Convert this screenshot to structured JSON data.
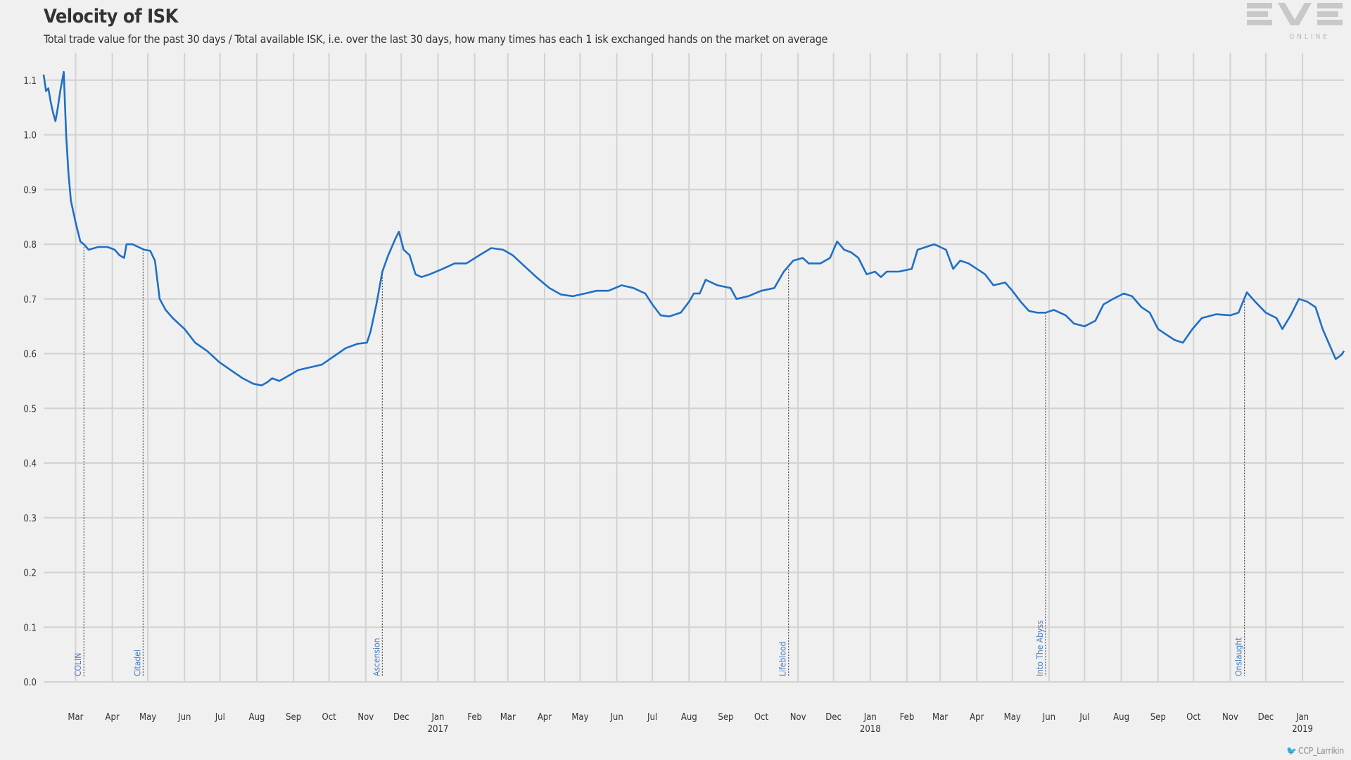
{
  "header": {
    "title": "Velocity of ISK",
    "subtitle": "Total trade value for the past 30 days / Total available ISK, i.e. over the last 30 days, how many times has each 1 isk exchanged hands on the market on average"
  },
  "logo": {
    "main": "EVE",
    "sub": "ONLINE"
  },
  "credit": "CCP_Larrikin",
  "colors": {
    "line": "#1f6fc5",
    "grid": "#d2d2d2",
    "background": "#f0f0f0",
    "event_line": "#555555",
    "event_label": "#4a7fc0"
  },
  "chart_data": {
    "type": "line",
    "title": "Velocity of ISK",
    "xlabel": "",
    "ylabel": "",
    "ylim": [
      0,
      1.15
    ],
    "y_ticks": [
      "0.0",
      "0.1",
      "0.2",
      "0.3",
      "0.4",
      "0.5",
      "0.6",
      "0.7",
      "0.8",
      "0.9",
      "1.0",
      "1.1"
    ],
    "x_ticks": [
      {
        "label": "Mar",
        "year": "",
        "date": "2016-03-01"
      },
      {
        "label": "Apr",
        "year": "",
        "date": "2016-04-01"
      },
      {
        "label": "May",
        "year": "",
        "date": "2016-05-01"
      },
      {
        "label": "Jun",
        "year": "",
        "date": "2016-06-01"
      },
      {
        "label": "Jul",
        "year": "",
        "date": "2016-07-01"
      },
      {
        "label": "Aug",
        "year": "",
        "date": "2016-08-01"
      },
      {
        "label": "Sep",
        "year": "",
        "date": "2016-09-01"
      },
      {
        "label": "Oct",
        "year": "",
        "date": "2016-10-01"
      },
      {
        "label": "Nov",
        "year": "",
        "date": "2016-11-01"
      },
      {
        "label": "Dec",
        "year": "",
        "date": "2016-12-01"
      },
      {
        "label": "Jan",
        "year": "2017",
        "date": "2017-01-01"
      },
      {
        "label": "Feb",
        "year": "",
        "date": "2017-02-01"
      },
      {
        "label": "Mar",
        "year": "",
        "date": "2017-03-01"
      },
      {
        "label": "Apr",
        "year": "",
        "date": "2017-04-01"
      },
      {
        "label": "May",
        "year": "",
        "date": "2017-05-01"
      },
      {
        "label": "Jun",
        "year": "",
        "date": "2017-06-01"
      },
      {
        "label": "Jul",
        "year": "",
        "date": "2017-07-01"
      },
      {
        "label": "Aug",
        "year": "",
        "date": "2017-08-01"
      },
      {
        "label": "Sep",
        "year": "",
        "date": "2017-09-01"
      },
      {
        "label": "Oct",
        "year": "",
        "date": "2017-10-01"
      },
      {
        "label": "Nov",
        "year": "",
        "date": "2017-11-01"
      },
      {
        "label": "Dec",
        "year": "",
        "date": "2017-12-01"
      },
      {
        "label": "Jan",
        "year": "2018",
        "date": "2018-01-01"
      },
      {
        "label": "Feb",
        "year": "",
        "date": "2018-02-01"
      },
      {
        "label": "Mar",
        "year": "",
        "date": "2018-03-01"
      },
      {
        "label": "Apr",
        "year": "",
        "date": "2018-04-01"
      },
      {
        "label": "May",
        "year": "",
        "date": "2018-05-01"
      },
      {
        "label": "Jun",
        "year": "",
        "date": "2018-06-01"
      },
      {
        "label": "Jul",
        "year": "",
        "date": "2018-07-01"
      },
      {
        "label": "Aug",
        "year": "",
        "date": "2018-08-01"
      },
      {
        "label": "Sep",
        "year": "",
        "date": "2018-09-01"
      },
      {
        "label": "Oct",
        "year": "",
        "date": "2018-10-01"
      },
      {
        "label": "Nov",
        "year": "",
        "date": "2018-11-01"
      },
      {
        "label": "Dec",
        "year": "",
        "date": "2018-12-01"
      },
      {
        "label": "Jan",
        "year": "2019",
        "date": "2019-01-01"
      }
    ],
    "x_range": [
      "2016-02-03",
      "2019-02-05"
    ],
    "events": [
      {
        "label": "COLIN",
        "date": "2016-03-08"
      },
      {
        "label": "Citadel",
        "date": "2016-04-27"
      },
      {
        "label": "Ascension",
        "date": "2016-11-15"
      },
      {
        "label": "Lifeblood",
        "date": "2017-10-24"
      },
      {
        "label": "Into The Abyss",
        "date": "2018-05-29"
      },
      {
        "label": "Onslaught",
        "date": "2018-11-13"
      }
    ],
    "series": [
      {
        "name": "",
        "values": [
          [
            "2016-02-03",
            1.11
          ],
          [
            "2016-02-05",
            1.08
          ],
          [
            "2016-02-07",
            1.085
          ],
          [
            "2016-02-09",
            1.06
          ],
          [
            "2016-02-11",
            1.04
          ],
          [
            "2016-02-13",
            1.025
          ],
          [
            "2016-02-15",
            1.05
          ],
          [
            "2016-02-17",
            1.08
          ],
          [
            "2016-02-20",
            1.115
          ],
          [
            "2016-02-22",
            1.0
          ],
          [
            "2016-02-24",
            0.93
          ],
          [
            "2016-02-26",
            0.88
          ],
          [
            "2016-03-01",
            0.84
          ],
          [
            "2016-03-05",
            0.805
          ],
          [
            "2016-03-08",
            0.8
          ],
          [
            "2016-03-12",
            0.79
          ],
          [
            "2016-03-20",
            0.795
          ],
          [
            "2016-03-28",
            0.795
          ],
          [
            "2016-04-03",
            0.79
          ],
          [
            "2016-04-07",
            0.78
          ],
          [
            "2016-04-11",
            0.775
          ],
          [
            "2016-04-13",
            0.8
          ],
          [
            "2016-04-18",
            0.8
          ],
          [
            "2016-04-23",
            0.795
          ],
          [
            "2016-04-28",
            0.79
          ],
          [
            "2016-05-03",
            0.788
          ],
          [
            "2016-05-07",
            0.77
          ],
          [
            "2016-05-11",
            0.7
          ],
          [
            "2016-05-16",
            0.68
          ],
          [
            "2016-05-22",
            0.665
          ],
          [
            "2016-06-01",
            0.645
          ],
          [
            "2016-06-10",
            0.62
          ],
          [
            "2016-06-20",
            0.605
          ],
          [
            "2016-06-30",
            0.585
          ],
          [
            "2016-07-10",
            0.57
          ],
          [
            "2016-07-20",
            0.555
          ],
          [
            "2016-07-29",
            0.545
          ],
          [
            "2016-08-05",
            0.542
          ],
          [
            "2016-08-10",
            0.548
          ],
          [
            "2016-08-14",
            0.555
          ],
          [
            "2016-08-20",
            0.55
          ],
          [
            "2016-08-28",
            0.56
          ],
          [
            "2016-09-05",
            0.57
          ],
          [
            "2016-09-15",
            0.575
          ],
          [
            "2016-09-25",
            0.58
          ],
          [
            "2016-10-05",
            0.595
          ],
          [
            "2016-10-15",
            0.61
          ],
          [
            "2016-10-25",
            0.618
          ],
          [
            "2016-11-02",
            0.62
          ],
          [
            "2016-11-05",
            0.64
          ],
          [
            "2016-11-10",
            0.69
          ],
          [
            "2016-11-15",
            0.75
          ],
          [
            "2016-11-20",
            0.78
          ],
          [
            "2016-11-26",
            0.81
          ],
          [
            "2016-11-29",
            0.823
          ],
          [
            "2016-12-03",
            0.79
          ],
          [
            "2016-12-08",
            0.78
          ],
          [
            "2016-12-13",
            0.745
          ],
          [
            "2016-12-18",
            0.74
          ],
          [
            "2016-12-25",
            0.745
          ],
          [
            "2017-01-05",
            0.755
          ],
          [
            "2017-01-15",
            0.765
          ],
          [
            "2017-01-25",
            0.765
          ],
          [
            "2017-02-05",
            0.78
          ],
          [
            "2017-02-15",
            0.793
          ],
          [
            "2017-02-25",
            0.79
          ],
          [
            "2017-03-05",
            0.78
          ],
          [
            "2017-03-15",
            0.76
          ],
          [
            "2017-03-25",
            0.74
          ],
          [
            "2017-04-05",
            0.72
          ],
          [
            "2017-04-15",
            0.708
          ],
          [
            "2017-04-25",
            0.705
          ],
          [
            "2017-05-05",
            0.71
          ],
          [
            "2017-05-15",
            0.715
          ],
          [
            "2017-05-25",
            0.715
          ],
          [
            "2017-06-05",
            0.725
          ],
          [
            "2017-06-15",
            0.72
          ],
          [
            "2017-06-25",
            0.71
          ],
          [
            "2017-07-01",
            0.69
          ],
          [
            "2017-07-08",
            0.67
          ],
          [
            "2017-07-15",
            0.668
          ],
          [
            "2017-07-25",
            0.675
          ],
          [
            "2017-08-01",
            0.695
          ],
          [
            "2017-08-05",
            0.71
          ],
          [
            "2017-08-10",
            0.71
          ],
          [
            "2017-08-15",
            0.735
          ],
          [
            "2017-08-25",
            0.725
          ],
          [
            "2017-09-05",
            0.72
          ],
          [
            "2017-09-10",
            0.7
          ],
          [
            "2017-09-20",
            0.705
          ],
          [
            "2017-10-01",
            0.715
          ],
          [
            "2017-10-12",
            0.72
          ],
          [
            "2017-10-20",
            0.75
          ],
          [
            "2017-10-28",
            0.77
          ],
          [
            "2017-11-05",
            0.775
          ],
          [
            "2017-11-10",
            0.765
          ],
          [
            "2017-11-20",
            0.765
          ],
          [
            "2017-11-28",
            0.775
          ],
          [
            "2017-12-04",
            0.805
          ],
          [
            "2017-12-10",
            0.79
          ],
          [
            "2017-12-16",
            0.785
          ],
          [
            "2017-12-22",
            0.775
          ],
          [
            "2017-12-29",
            0.745
          ],
          [
            "2018-01-05",
            0.75
          ],
          [
            "2018-01-10",
            0.74
          ],
          [
            "2018-01-15",
            0.75
          ],
          [
            "2018-01-25",
            0.75
          ],
          [
            "2018-02-05",
            0.755
          ],
          [
            "2018-02-10",
            0.79
          ],
          [
            "2018-02-17",
            0.795
          ],
          [
            "2018-02-24",
            0.8
          ],
          [
            "2018-03-01",
            0.795
          ],
          [
            "2018-03-06",
            0.79
          ],
          [
            "2018-03-12",
            0.755
          ],
          [
            "2018-03-18",
            0.77
          ],
          [
            "2018-03-25",
            0.765
          ],
          [
            "2018-04-01",
            0.755
          ],
          [
            "2018-04-08",
            0.745
          ],
          [
            "2018-04-15",
            0.725
          ],
          [
            "2018-04-25",
            0.73
          ],
          [
            "2018-05-01",
            0.715
          ],
          [
            "2018-05-08",
            0.695
          ],
          [
            "2018-05-15",
            0.678
          ],
          [
            "2018-05-22",
            0.675
          ],
          [
            "2018-05-29",
            0.675
          ],
          [
            "2018-06-05",
            0.68
          ],
          [
            "2018-06-15",
            0.67
          ],
          [
            "2018-06-22",
            0.655
          ],
          [
            "2018-07-01",
            0.65
          ],
          [
            "2018-07-10",
            0.66
          ],
          [
            "2018-07-17",
            0.69
          ],
          [
            "2018-07-25",
            0.7
          ],
          [
            "2018-08-03",
            0.71
          ],
          [
            "2018-08-10",
            0.705
          ],
          [
            "2018-08-18",
            0.685
          ],
          [
            "2018-08-25",
            0.675
          ],
          [
            "2018-09-01",
            0.645
          ],
          [
            "2018-09-08",
            0.635
          ],
          [
            "2018-09-15",
            0.625
          ],
          [
            "2018-09-22",
            0.62
          ],
          [
            "2018-09-30",
            0.645
          ],
          [
            "2018-10-08",
            0.665
          ],
          [
            "2018-10-20",
            0.672
          ],
          [
            "2018-11-01",
            0.67
          ],
          [
            "2018-11-08",
            0.675
          ],
          [
            "2018-11-15",
            0.712
          ],
          [
            "2018-11-22",
            0.695
          ],
          [
            "2018-12-01",
            0.675
          ],
          [
            "2018-12-10",
            0.665
          ],
          [
            "2018-12-15",
            0.645
          ],
          [
            "2018-12-22",
            0.67
          ],
          [
            "2018-12-29",
            0.7
          ],
          [
            "2019-01-05",
            0.695
          ],
          [
            "2019-01-12",
            0.685
          ],
          [
            "2019-01-18",
            0.645
          ],
          [
            "2019-01-24",
            0.615
          ],
          [
            "2019-01-29",
            0.59
          ],
          [
            "2019-02-01",
            0.595
          ],
          [
            "2019-02-03",
            0.598
          ],
          [
            "2019-02-05",
            0.605
          ]
        ]
      }
    ],
    "grid": true,
    "legend": "none"
  }
}
